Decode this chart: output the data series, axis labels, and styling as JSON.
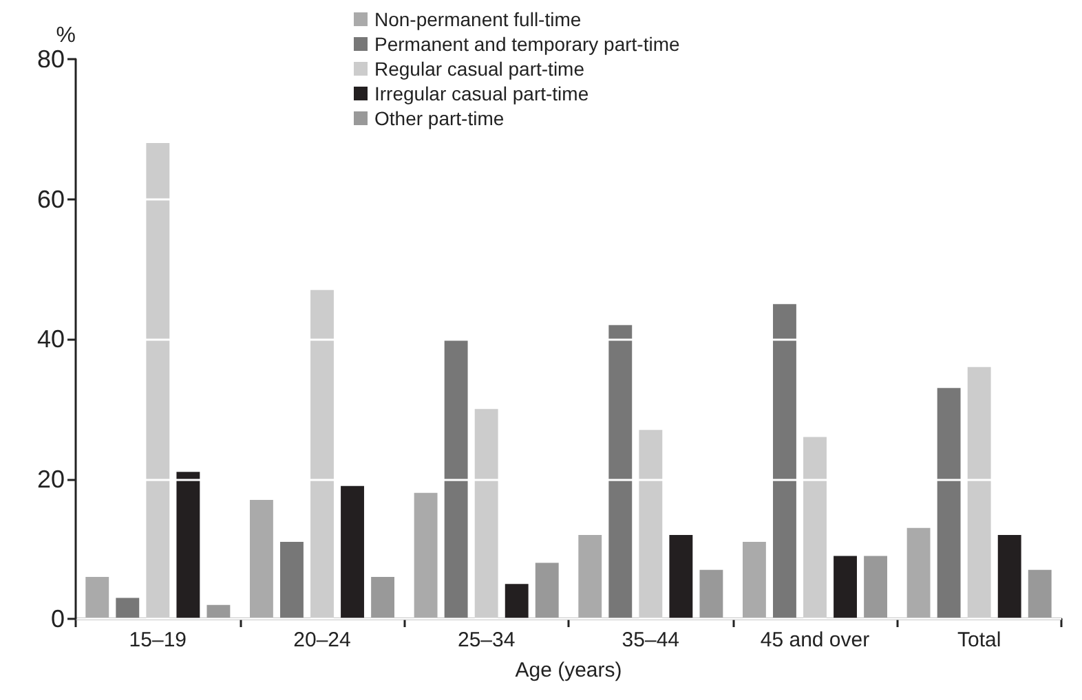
{
  "chart_data": {
    "type": "bar",
    "xlabel": "Age (years)",
    "ylabel": "%",
    "categories": [
      "15–19",
      "20–24",
      "25–34",
      "35–44",
      "45 and over",
      "Total"
    ],
    "series": [
      {
        "name": "Non-permanent full-time",
        "color": "#aaaaaa",
        "values": [
          6,
          17,
          18,
          12,
          11,
          13
        ]
      },
      {
        "name": "Permanent and temporary part-time",
        "color": "#777777",
        "values": [
          3,
          11,
          40,
          42,
          45,
          33
        ]
      },
      {
        "name": "Regular casual part-time",
        "color": "#cccccc",
        "values": [
          68,
          47,
          30,
          27,
          26,
          36
        ]
      },
      {
        "name": "Irregular casual part-time",
        "color": "#231f20",
        "values": [
          21,
          19,
          5,
          12,
          9,
          12
        ]
      },
      {
        "name": "Other part-time",
        "color": "#999999",
        "values": [
          2,
          6,
          8,
          7,
          9,
          7
        ]
      }
    ],
    "ylim": [
      0,
      80
    ],
    "yticks": [
      0,
      20,
      40,
      60,
      80
    ],
    "grid": "y",
    "legend": "top"
  }
}
